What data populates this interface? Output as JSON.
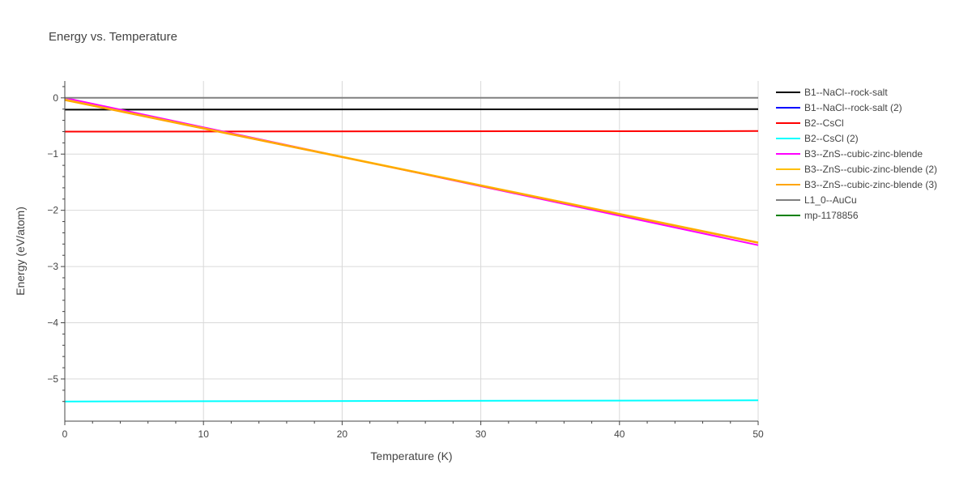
{
  "chart_data": {
    "type": "line",
    "title": "Energy vs. Temperature",
    "xlabel": "Temperature (K)",
    "ylabel": "Energy (eV/atom)",
    "xlim": [
      0,
      50
    ],
    "ylim": [
      -5.75,
      0.3
    ],
    "x_ticks": [
      0,
      10,
      20,
      30,
      40,
      50
    ],
    "x_tick_labels": [
      "0",
      "10",
      "20",
      "30",
      "40",
      "50"
    ],
    "y_ticks": [
      0,
      -1,
      -2,
      -3,
      -4,
      -5
    ],
    "y_tick_labels": [
      "0",
      "−1",
      "−2",
      "−3",
      "−4",
      "−5"
    ],
    "grid": true,
    "legend_position": "right",
    "series": [
      {
        "name": "B1--NaCl--rock-salt",
        "color": "#000000",
        "x": [
          0,
          50
        ],
        "y": [
          -0.21,
          -0.2
        ]
      },
      {
        "name": "B1--NaCl--rock-salt (2)",
        "color": "#0000ff",
        "x": [],
        "y": []
      },
      {
        "name": "B2--CsCl",
        "color": "#ff0000",
        "x": [
          0,
          50
        ],
        "y": [
          -0.6,
          -0.59
        ]
      },
      {
        "name": "B2--CsCl (2)",
        "color": "#00ffff",
        "x": [
          0,
          50
        ],
        "y": [
          -5.4,
          -5.38
        ]
      },
      {
        "name": "B3--ZnS--cubic-zinc-blende",
        "color": "#ff00ff",
        "x": [
          0,
          50
        ],
        "y": [
          0.0,
          -2.62
        ]
      },
      {
        "name": "B3--ZnS--cubic-zinc-blende (2)",
        "color": "#ffbf00",
        "x": [
          0,
          50
        ],
        "y": [
          -0.03,
          -2.57
        ]
      },
      {
        "name": "B3--ZnS--cubic-zinc-blende (3)",
        "color": "#ffa500",
        "x": [
          0,
          50
        ],
        "y": [
          -0.04,
          -2.58
        ]
      },
      {
        "name": "L1_0--AuCu",
        "color": "#808080",
        "x": [
          0,
          50
        ],
        "y": [
          0.0,
          0.0
        ]
      },
      {
        "name": "mp-1178856",
        "color": "#008000",
        "x": [],
        "y": []
      }
    ]
  }
}
